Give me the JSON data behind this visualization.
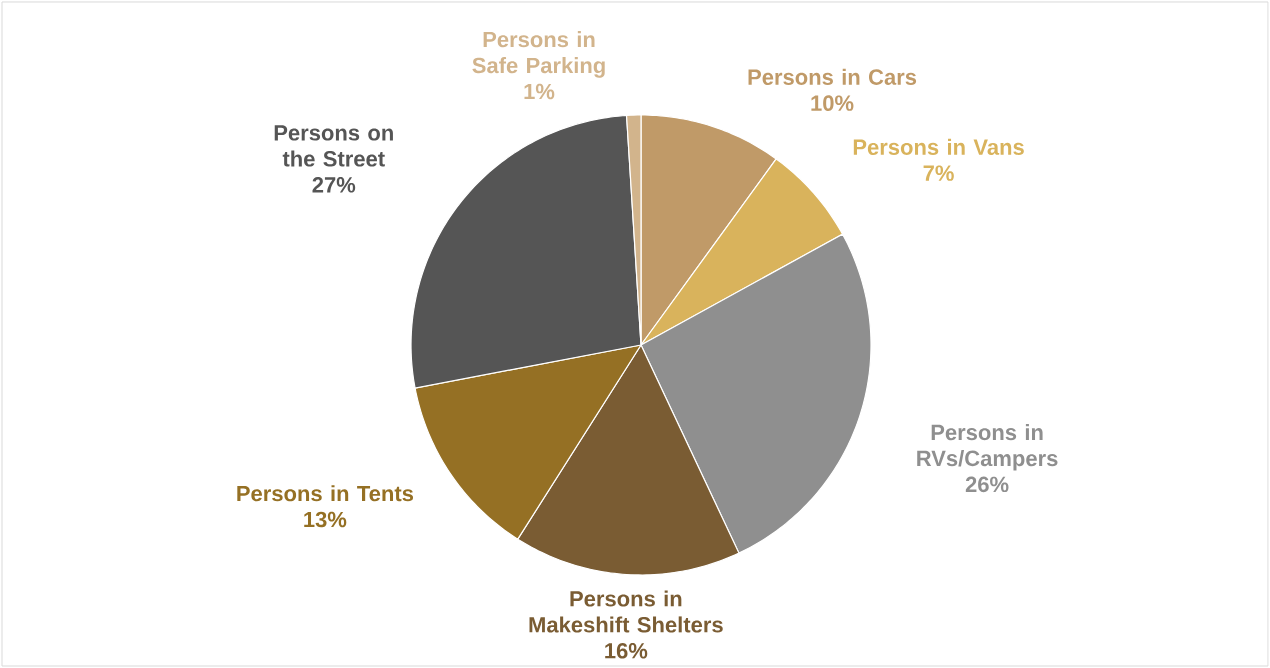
{
  "chart_data": {
    "type": "pie",
    "categories": [
      "Persons in Cars",
      "Persons in Vans",
      "Persons in RVs/Campers",
      "Persons in Makeshift Shelters",
      "Persons in Tents",
      "Persons on the Street",
      "Persons in Safe Parking"
    ],
    "values": [
      10,
      7,
      26,
      16,
      13,
      27,
      1
    ],
    "value_labels": [
      "10%",
      "7%",
      "26%",
      "16%",
      "13%",
      "27%",
      "1%"
    ],
    "colors": [
      "#c09a68",
      "#d9b35c",
      "#8f8f8f",
      "#7a5c33",
      "#957024",
      "#555555",
      "#d2b48c"
    ]
  }
}
